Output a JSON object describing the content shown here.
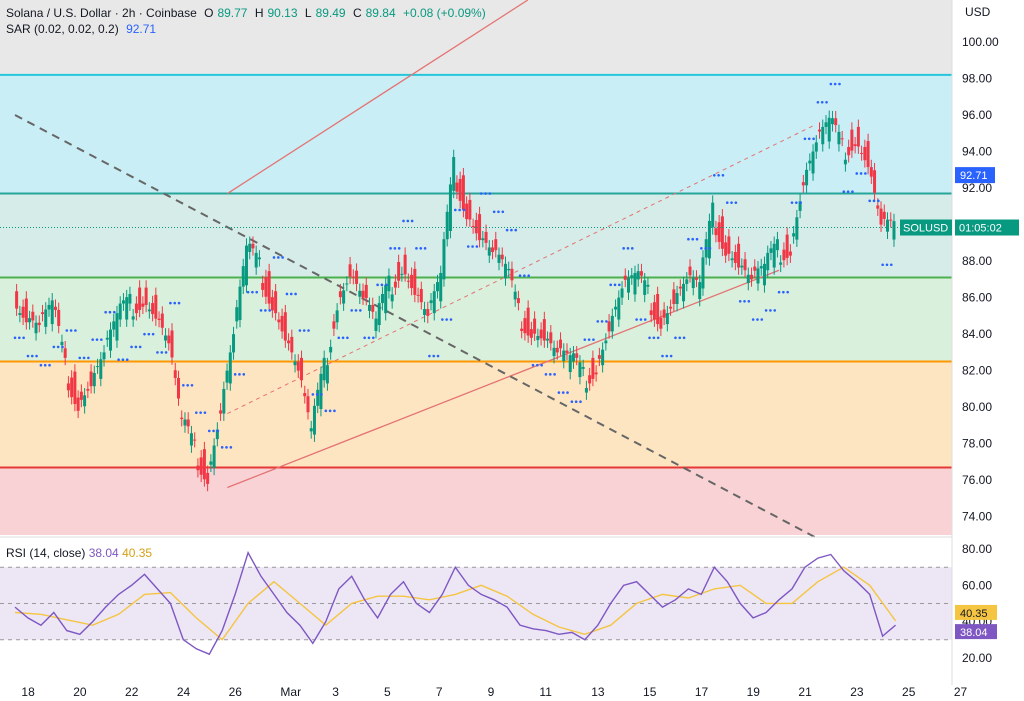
{
  "header": {
    "symbol_line": "Solana / U.S. Dollar · 2h · Coinbase",
    "open_label": "O",
    "open": "89.77",
    "high_label": "H",
    "high": "90.13",
    "low_label": "L",
    "low": "89.49",
    "close_label": "C",
    "close": "89.84",
    "change": "+0.08 (+0.09%)",
    "sar_label": "SAR (0.02, 0.02, 0.2)",
    "sar_value": "92.71"
  },
  "currency": "USD",
  "price_tag": {
    "symbol": "SOLUSD",
    "countdown": "01:05:02"
  },
  "sar_tag": "92.71",
  "rsi": {
    "label": "RSI (14, close)",
    "value": "38.04",
    "ma_value": "40.35",
    "ticks": [
      "80.00",
      "60.00",
      "40.00",
      "20.00"
    ]
  },
  "colors": {
    "up": "#089981",
    "down": "#f23645",
    "sar": "#2962ff",
    "rsi": "#7e57c2",
    "rsi_ma": "#f5c542",
    "zone_blue": "#c9eef5",
    "zone_green": "#d9f0dc",
    "zone_orange": "#fde5c2",
    "zone_red": "#f9d2d5"
  },
  "chart_data": {
    "type": "candlestick",
    "title": "Solana / U.S. Dollar · 2h · Coinbase",
    "y_ticks": [
      "100.00",
      "98.00",
      "96.00",
      "94.00",
      "92.00",
      "90.00",
      "88.00",
      "86.00",
      "84.00",
      "82.00",
      "80.00",
      "78.00",
      "76.00",
      "74.00"
    ],
    "x_ticks": [
      "18",
      "20",
      "22",
      "24",
      "26",
      "Mar",
      "3",
      "5",
      "7",
      "9",
      "11",
      "13",
      "15",
      "17",
      "19",
      "21",
      "23",
      "25",
      "27"
    ],
    "ylim": [
      73,
      102.3
    ],
    "horizontal_levels": [
      98.2,
      91.7,
      87.1,
      82.5,
      76.7
    ],
    "trend_channel": {
      "upper": [
        [
          25.2,
          91.7
        ],
        [
          36.8,
          102.3
        ]
      ],
      "lower": [
        [
          25.2,
          75.6
        ],
        [
          46.5,
          87.5
        ]
      ]
    },
    "descending_line": [
      [
        17.0,
        96.0
      ],
      [
        48.0,
        72.8
      ]
    ],
    "close_series": [
      {
        "x": 17.0,
        "y": 86
      },
      {
        "x": 17.5,
        "y": 85
      },
      {
        "x": 18.0,
        "y": 84.5
      },
      {
        "x": 18.5,
        "y": 85.5
      },
      {
        "x": 19.0,
        "y": 82
      },
      {
        "x": 19.5,
        "y": 80.5
      },
      {
        "x": 20.0,
        "y": 81.5
      },
      {
        "x": 20.5,
        "y": 83
      },
      {
        "x": 21.0,
        "y": 84.8
      },
      {
        "x": 21.5,
        "y": 85.5
      },
      {
        "x": 22.0,
        "y": 86.2
      },
      {
        "x": 22.5,
        "y": 85.2
      },
      {
        "x": 23.0,
        "y": 83.5
      },
      {
        "x": 23.5,
        "y": 79
      },
      {
        "x": 24.0,
        "y": 77.5
      },
      {
        "x": 24.5,
        "y": 76.5
      },
      {
        "x": 25.0,
        "y": 80
      },
      {
        "x": 25.5,
        "y": 84
      },
      {
        "x": 26.0,
        "y": 88.5
      },
      {
        "x": 26.5,
        "y": 87.5
      },
      {
        "x": 27.0,
        "y": 86
      },
      {
        "x": 27.5,
        "y": 84
      },
      {
        "x": 28.0,
        "y": 82
      },
      {
        "x": 28.5,
        "y": 78.5
      },
      {
        "x": 29.0,
        "y": 82
      },
      {
        "x": 29.5,
        "y": 86
      },
      {
        "x": 30.0,
        "y": 87.5
      },
      {
        "x": 30.5,
        "y": 86
      },
      {
        "x": 31.0,
        "y": 84.5
      },
      {
        "x": 31.5,
        "y": 86.5
      },
      {
        "x": 32.0,
        "y": 88
      },
      {
        "x": 32.5,
        "y": 86.5
      },
      {
        "x": 33.0,
        "y": 85
      },
      {
        "x": 33.5,
        "y": 87
      },
      {
        "x": 34.0,
        "y": 93
      },
      {
        "x": 34.5,
        "y": 91
      },
      {
        "x": 35.0,
        "y": 89.5
      },
      {
        "x": 35.5,
        "y": 88.5
      },
      {
        "x": 36.0,
        "y": 87.5
      },
      {
        "x": 36.5,
        "y": 85
      },
      {
        "x": 37.0,
        "y": 84.5
      },
      {
        "x": 37.5,
        "y": 84
      },
      {
        "x": 38.0,
        "y": 83
      },
      {
        "x": 38.5,
        "y": 82.5
      },
      {
        "x": 39.0,
        "y": 81.5
      },
      {
        "x": 39.5,
        "y": 82.5
      },
      {
        "x": 40.0,
        "y": 84.5
      },
      {
        "x": 40.5,
        "y": 86.5
      },
      {
        "x": 41.0,
        "y": 87
      },
      {
        "x": 41.5,
        "y": 86
      },
      {
        "x": 42.0,
        "y": 85
      },
      {
        "x": 42.5,
        "y": 86
      },
      {
        "x": 43.0,
        "y": 87
      },
      {
        "x": 43.5,
        "y": 86.5
      },
      {
        "x": 44.0,
        "y": 90.5
      },
      {
        "x": 44.5,
        "y": 89
      },
      {
        "x": 45.0,
        "y": 88
      },
      {
        "x": 45.5,
        "y": 87
      },
      {
        "x": 46.0,
        "y": 87.5
      },
      {
        "x": 46.5,
        "y": 88.5
      },
      {
        "x": 47.0,
        "y": 89
      },
      {
        "x": 47.5,
        "y": 92.5
      },
      {
        "x": 48.0,
        "y": 94.5
      },
      {
        "x": 48.5,
        "y": 95.5
      },
      {
        "x": 49.0,
        "y": 94
      },
      {
        "x": 49.5,
        "y": 95
      },
      {
        "x": 50.0,
        "y": 93.5
      },
      {
        "x": 50.5,
        "y": 90
      },
      {
        "x": 51.0,
        "y": 89.84
      }
    ],
    "rsi_series": [
      {
        "x": 17.0,
        "y": 48
      },
      {
        "x": 17.5,
        "y": 42
      },
      {
        "x": 18.0,
        "y": 38
      },
      {
        "x": 18.5,
        "y": 45
      },
      {
        "x": 19.0,
        "y": 35
      },
      {
        "x": 19.5,
        "y": 33
      },
      {
        "x": 20.0,
        "y": 40
      },
      {
        "x": 20.5,
        "y": 48
      },
      {
        "x": 21.0,
        "y": 55
      },
      {
        "x": 21.5,
        "y": 60
      },
      {
        "x": 22.0,
        "y": 66
      },
      {
        "x": 22.5,
        "y": 58
      },
      {
        "x": 23.0,
        "y": 50
      },
      {
        "x": 23.5,
        "y": 30
      },
      {
        "x": 24.0,
        "y": 25
      },
      {
        "x": 24.5,
        "y": 22
      },
      {
        "x": 25.0,
        "y": 35
      },
      {
        "x": 25.5,
        "y": 55
      },
      {
        "x": 26.0,
        "y": 78
      },
      {
        "x": 26.5,
        "y": 65
      },
      {
        "x": 27.0,
        "y": 55
      },
      {
        "x": 27.5,
        "y": 45
      },
      {
        "x": 28.0,
        "y": 38
      },
      {
        "x": 28.5,
        "y": 28
      },
      {
        "x": 29.0,
        "y": 40
      },
      {
        "x": 29.5,
        "y": 58
      },
      {
        "x": 30.0,
        "y": 65
      },
      {
        "x": 30.5,
        "y": 52
      },
      {
        "x": 31.0,
        "y": 42
      },
      {
        "x": 31.5,
        "y": 55
      },
      {
        "x": 32.0,
        "y": 62
      },
      {
        "x": 32.5,
        "y": 50
      },
      {
        "x": 33.0,
        "y": 45
      },
      {
        "x": 33.5,
        "y": 55
      },
      {
        "x": 34.0,
        "y": 70
      },
      {
        "x": 34.5,
        "y": 60
      },
      {
        "x": 35.0,
        "y": 55
      },
      {
        "x": 35.5,
        "y": 52
      },
      {
        "x": 36.0,
        "y": 48
      },
      {
        "x": 36.5,
        "y": 38
      },
      {
        "x": 37.0,
        "y": 36
      },
      {
        "x": 37.5,
        "y": 35
      },
      {
        "x": 38.0,
        "y": 33
      },
      {
        "x": 38.5,
        "y": 34
      },
      {
        "x": 39.0,
        "y": 30
      },
      {
        "x": 39.5,
        "y": 38
      },
      {
        "x": 40.0,
        "y": 50
      },
      {
        "x": 40.5,
        "y": 60
      },
      {
        "x": 41.0,
        "y": 62
      },
      {
        "x": 41.5,
        "y": 55
      },
      {
        "x": 42.0,
        "y": 48
      },
      {
        "x": 42.5,
        "y": 52
      },
      {
        "x": 43.0,
        "y": 58
      },
      {
        "x": 43.5,
        "y": 55
      },
      {
        "x": 44.0,
        "y": 70
      },
      {
        "x": 44.5,
        "y": 62
      },
      {
        "x": 45.0,
        "y": 50
      },
      {
        "x": 45.5,
        "y": 42
      },
      {
        "x": 46.0,
        "y": 45
      },
      {
        "x": 46.5,
        "y": 52
      },
      {
        "x": 47.0,
        "y": 58
      },
      {
        "x": 47.5,
        "y": 70
      },
      {
        "x": 48.0,
        "y": 75
      },
      {
        "x": 48.5,
        "y": 77
      },
      {
        "x": 49.0,
        "y": 68
      },
      {
        "x": 49.5,
        "y": 62
      },
      {
        "x": 50.0,
        "y": 55
      },
      {
        "x": 50.5,
        "y": 32
      },
      {
        "x": 51.0,
        "y": 38.04
      }
    ],
    "rsi_ma_series": [
      {
        "x": 17.0,
        "y": 45
      },
      {
        "x": 18.0,
        "y": 44
      },
      {
        "x": 19.0,
        "y": 41
      },
      {
        "x": 20.0,
        "y": 38
      },
      {
        "x": 21.0,
        "y": 44
      },
      {
        "x": 22.0,
        "y": 55
      },
      {
        "x": 23.0,
        "y": 56
      },
      {
        "x": 24.0,
        "y": 42
      },
      {
        "x": 25.0,
        "y": 30
      },
      {
        "x": 26.0,
        "y": 50
      },
      {
        "x": 27.0,
        "y": 62
      },
      {
        "x": 28.0,
        "y": 50
      },
      {
        "x": 29.0,
        "y": 38
      },
      {
        "x": 30.0,
        "y": 50
      },
      {
        "x": 31.0,
        "y": 54
      },
      {
        "x": 32.0,
        "y": 54
      },
      {
        "x": 33.0,
        "y": 52
      },
      {
        "x": 34.0,
        "y": 55
      },
      {
        "x": 35.0,
        "y": 60
      },
      {
        "x": 36.0,
        "y": 54
      },
      {
        "x": 37.0,
        "y": 44
      },
      {
        "x": 38.0,
        "y": 37
      },
      {
        "x": 39.0,
        "y": 33
      },
      {
        "x": 40.0,
        "y": 38
      },
      {
        "x": 41.0,
        "y": 50
      },
      {
        "x": 42.0,
        "y": 55
      },
      {
        "x": 43.0,
        "y": 53
      },
      {
        "x": 44.0,
        "y": 58
      },
      {
        "x": 45.0,
        "y": 60
      },
      {
        "x": 46.0,
        "y": 50
      },
      {
        "x": 47.0,
        "y": 50
      },
      {
        "x": 48.0,
        "y": 62
      },
      {
        "x": 49.0,
        "y": 70
      },
      {
        "x": 50.0,
        "y": 60
      },
      {
        "x": 51.0,
        "y": 40.35
      }
    ]
  }
}
